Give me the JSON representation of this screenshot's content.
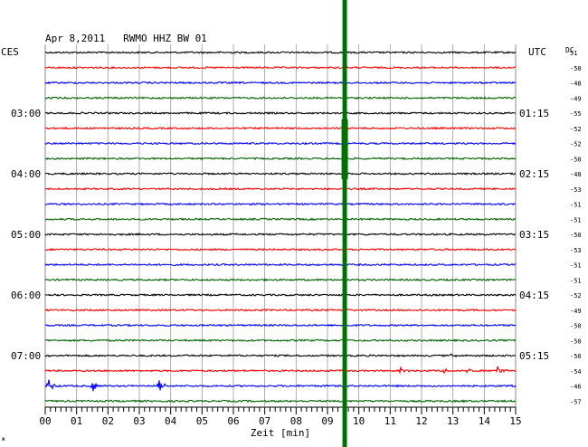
{
  "header": {
    "title": "Apr 8,2011   RWMO HHZ BW 01",
    "left_tz": "CES",
    "right_tz": "UTC",
    "dc_label": "DC"
  },
  "footer": {
    "xlabel": "Zeit [min]",
    "corner_mark": "ж"
  },
  "chart_data": {
    "type": "line",
    "title": "Apr 8,2011   RWMO HHZ BW 01",
    "xlabel": "Zeit [min]",
    "ylabel": "",
    "xlim": [
      0,
      15
    ],
    "x_ticks": [
      "00",
      "01",
      "02",
      "03",
      "04",
      "05",
      "06",
      "07",
      "08",
      "09",
      "10",
      "11",
      "12",
      "13",
      "14",
      "15"
    ],
    "grid": true,
    "trace_colors": [
      "#000000",
      "#ff0000",
      "#0000ff",
      "#006400"
    ],
    "left_labels": [
      {
        "trace": 4,
        "text": "03:00"
      },
      {
        "trace": 8,
        "text": "04:00"
      },
      {
        "trace": 12,
        "text": "05:00"
      },
      {
        "trace": 16,
        "text": "06:00"
      },
      {
        "trace": 20,
        "text": "07:00"
      }
    ],
    "right_labels": [
      {
        "trace": 4,
        "text": "01:15"
      },
      {
        "trace": 8,
        "text": "02:15"
      },
      {
        "trace": 12,
        "text": "03:15"
      },
      {
        "trace": 16,
        "text": "04:15"
      },
      {
        "trace": 20,
        "text": "05:15"
      }
    ],
    "dc_offsets": [
      "51",
      "-50",
      "-48",
      "-49",
      "-55",
      "-52",
      "-52",
      "-50",
      "-48",
      "-53",
      "-51",
      "-51",
      "-50",
      "-53",
      "-51",
      "-51",
      "-52",
      "-49",
      "-50",
      "-50",
      "-50",
      "-54",
      "-46",
      "-57"
    ],
    "marker": {
      "time_min": 9.55,
      "color": "#007000",
      "label": ""
    },
    "events": [
      {
        "trace": 22,
        "time_min": 0.1,
        "amplitude": "large"
      },
      {
        "trace": 22,
        "time_min": 1.5,
        "amplitude": "large"
      },
      {
        "trace": 22,
        "time_min": 3.6,
        "amplitude": "large"
      },
      {
        "trace": 21,
        "time_min": 11.3,
        "amplitude": "medium"
      },
      {
        "trace": 21,
        "time_min": 12.7,
        "amplitude": "medium"
      },
      {
        "trace": 21,
        "time_min": 13.4,
        "amplitude": "medium"
      },
      {
        "trace": 21,
        "time_min": 14.4,
        "amplitude": "large"
      },
      {
        "trace": 23,
        "time_min": 13.3,
        "amplitude": "small"
      },
      {
        "trace": 20,
        "time_min": 12.9,
        "amplitude": "small"
      }
    ]
  }
}
